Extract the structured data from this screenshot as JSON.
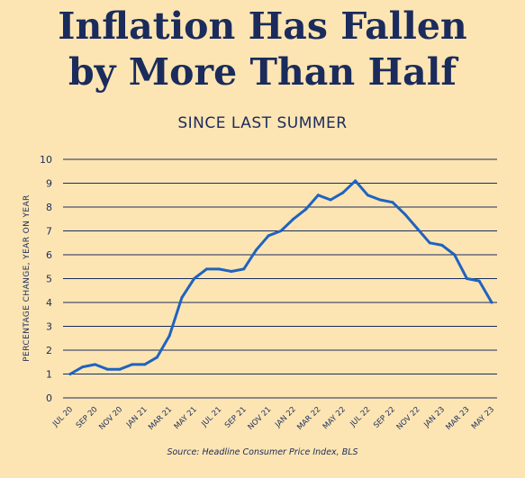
{
  "header": {
    "title_line1": "Inflation Has Fallen",
    "title_line2": "by More Than Half",
    "subtitle": "SINCE LAST SUMMER"
  },
  "footer": {
    "source": "Source: Headline Consumer Price Index, BLS"
  },
  "colors": {
    "background": "#fde5b3",
    "text": "#1a2b5c",
    "line": "#1f63c0",
    "grid": "#1a2b5c"
  },
  "chart_data": {
    "type": "line",
    "title": "Inflation Has Fallen by More Than Half",
    "subtitle": "SINCE LAST SUMMER",
    "xlabel": "",
    "ylabel": "PERCENTAGE CHANGE, YEAR ON YEAR",
    "ylim": [
      0,
      10
    ],
    "yticks": [
      0,
      1,
      2,
      3,
      4,
      5,
      6,
      7,
      8,
      9,
      10
    ],
    "xtick_labels": [
      "JUL 20",
      "SEP 20",
      "NOV 20",
      "JAN 21",
      "MAR 21",
      "MAY 21",
      "JUL 21",
      "SEP 21",
      "NOV 21",
      "JAN 22",
      "MAR 22",
      "MAY 22",
      "JUL 22",
      "SEP 22",
      "NOV 22",
      "JAN 23",
      "MAR 23",
      "MAY 23"
    ],
    "grid": "horizontal",
    "x": [
      "2020-07",
      "2020-08",
      "2020-09",
      "2020-10",
      "2020-11",
      "2020-12",
      "2021-01",
      "2021-02",
      "2021-03",
      "2021-04",
      "2021-05",
      "2021-06",
      "2021-07",
      "2021-08",
      "2021-09",
      "2021-10",
      "2021-11",
      "2021-12",
      "2022-01",
      "2022-02",
      "2022-03",
      "2022-04",
      "2022-05",
      "2022-06",
      "2022-07",
      "2022-08",
      "2022-09",
      "2022-10",
      "2022-11",
      "2022-12",
      "2023-01",
      "2023-02",
      "2023-03",
      "2023-04",
      "2023-05"
    ],
    "series": [
      {
        "name": "",
        "values": [
          1.0,
          1.3,
          1.4,
          1.2,
          1.2,
          1.4,
          1.4,
          1.7,
          2.6,
          4.2,
          5.0,
          5.4,
          5.4,
          5.3,
          5.4,
          6.2,
          6.8,
          7.0,
          7.5,
          7.9,
          8.5,
          8.3,
          8.6,
          9.1,
          8.5,
          8.3,
          8.2,
          7.7,
          7.1,
          6.5,
          6.4,
          6.0,
          5.0,
          4.9,
          4.0
        ]
      }
    ]
  }
}
